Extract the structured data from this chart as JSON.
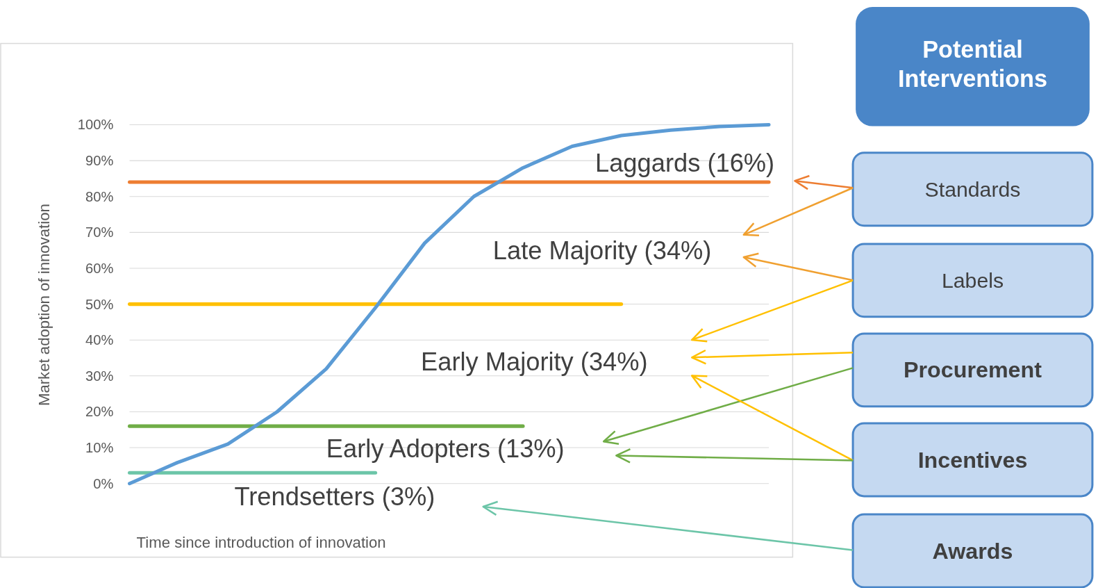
{
  "chart_data": [
    {
      "type": "line",
      "xlabel": "Time since introduction of innovation",
      "ylabel": "Market adoption of innovation",
      "categories": [
        null,
        null,
        null,
        null,
        null,
        null,
        null,
        null,
        null,
        null,
        null,
        null,
        null,
        null
      ],
      "series": [
        {
          "color": "#5b9bd5",
          "values": [
            0,
            6,
            11,
            20,
            32,
            49,
            67,
            80,
            88,
            94,
            97,
            98.5,
            99.5,
            100
          ]
        },
        {
          "color": "#ed7d31",
          "values": [
            84,
            84,
            84,
            84,
            84,
            84,
            84,
            84,
            84,
            84,
            84,
            84,
            84,
            84
          ]
        },
        {
          "color": "#ffc000",
          "values": [
            50,
            50,
            50,
            50,
            50,
            50,
            50,
            50,
            50,
            50,
            50,
            null,
            null,
            null
          ]
        },
        {
          "color": "#70ad47",
          "values": [
            16,
            16,
            16,
            16,
            16,
            16,
            16,
            16,
            16,
            null,
            null,
            null,
            null,
            null
          ]
        },
        {
          "color": "#6cc5a8",
          "values": [
            3,
            3,
            3,
            3,
            3,
            3,
            null,
            null,
            null,
            null,
            null,
            null,
            null,
            null
          ]
        }
      ],
      "ylim": [
        0,
        100
      ],
      "yticks": [
        {
          "value": 0,
          "label": "0%"
        },
        {
          "value": 10,
          "label": "10%"
        },
        {
          "value": 20,
          "label": "20%"
        },
        {
          "value": 30,
          "label": "30%"
        },
        {
          "value": 40,
          "label": "40%"
        },
        {
          "value": 50,
          "label": "50%"
        },
        {
          "value": 60,
          "label": "60%"
        },
        {
          "value": 70,
          "label": "70%"
        },
        {
          "value": 80,
          "label": "80%"
        },
        {
          "value": 90,
          "label": "90%"
        },
        {
          "value": 100,
          "label": "100%"
        }
      ],
      "grid": "y",
      "tick_labels": "y",
      "annotations": [
        "Laggards (16%)",
        "Late Majority (34%)",
        "Early Majority (34%)",
        "Early Adopters (13%)",
        "Trendsetters (3%)"
      ]
    },
    {
      "type": "other",
      "title": "Potential Interventions",
      "annotations": [
        "Standards",
        "Labels",
        "Procurement",
        "Incentives",
        "Awards"
      ]
    }
  ]
}
